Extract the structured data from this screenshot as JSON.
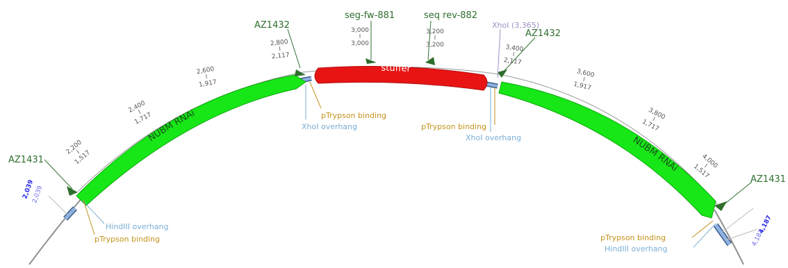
{
  "colors": {
    "backbone": "#8f8f8f",
    "feature_green": "#17e617",
    "feature_green_stroke": "#0fa80f",
    "stuffer_red": "#e81414",
    "stuffer_stroke": "#b00c0c",
    "connector_blue": "#8fb3e0",
    "primer_green": "#2e6e2e",
    "binding_gold": "#c4921a",
    "overhang_blue": "#7aaed4",
    "xhoi_purple": "#9a8fc4",
    "boundary_blue": "#2828e8"
  },
  "features": {
    "nubm_left": "NUBM RNAi",
    "stuffer": "stuffer",
    "nubm_right": "NUBM RNAi"
  },
  "primers": {
    "az1431_left": "AZ1431",
    "az1432_left": "AZ1432",
    "seg_fw": "seg-fw-881",
    "seq_rev": "seq rev-882",
    "az1432_right": "AZ1432",
    "az1431_right": "AZ1431"
  },
  "sites": {
    "xhoi_site": "XhoI (3,365)",
    "hindiii_left": "HindIII overhang",
    "ptrypson_left": "pTrypson binding",
    "ptrypson_mid": "pTrypson binding",
    "xhoi_overhang_mid": "XhoI overhang",
    "ptrypson_right_mid": "pTrypson binding",
    "xhoi_overhang_right": "XhoI overhang",
    "ptrypson_right": "pTrypson binding",
    "hindiii_right": "HindIII overhang"
  },
  "boundaries": {
    "left_a": "2,039",
    "left_b": "2,039",
    "right_a": "4,187",
    "right_b": "4,187"
  },
  "ticks": [
    {
      "top": "2,200",
      "bottom": "1,517"
    },
    {
      "top": "2,400",
      "bottom": "1,717"
    },
    {
      "top": "2,600",
      "bottom": "1,917"
    },
    {
      "top": "2,800",
      "bottom": "2,117"
    },
    {
      "top": "3,000",
      "bottom": "3,000"
    },
    {
      "top": "3,200",
      "bottom": "3,200"
    },
    {
      "top": "3,400",
      "bottom": "2,117"
    },
    {
      "top": "3,600",
      "bottom": "1,917"
    },
    {
      "top": "3,800",
      "bottom": "1,717"
    },
    {
      "top": "4,000",
      "bottom": "1,517"
    }
  ]
}
